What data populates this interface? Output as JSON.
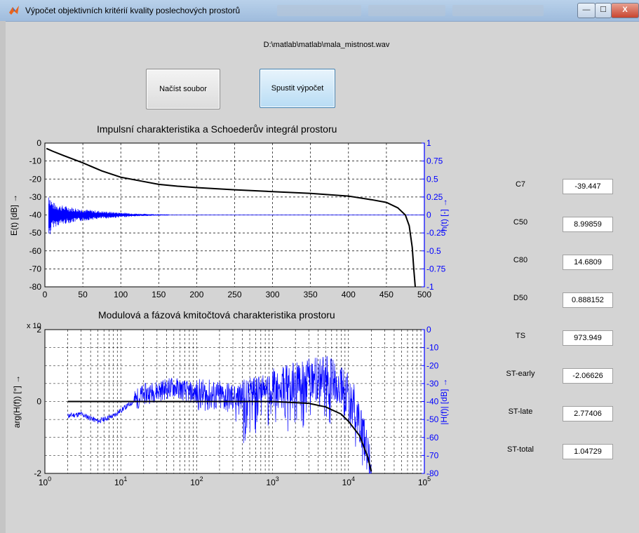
{
  "window": {
    "title": "Výpočet objektivních kritérií kvality poslechových prostorů",
    "minimize": "—",
    "maximize": "☐",
    "close": "X"
  },
  "file_path": "D:\\matlab\\matlab\\mala_mistnost.wav",
  "buttons": {
    "load": "Načíst soubor",
    "run": "Spustit výpočet"
  },
  "chart_data": [
    {
      "type": "line",
      "title": "Impulsní charakteristika a Schoederův integrál prostoru",
      "xlim": [
        0,
        500
      ],
      "x_ticks": [
        "0",
        "50",
        "100",
        "150",
        "200",
        "250",
        "300",
        "350",
        "400",
        "450",
        "500"
      ],
      "ylim_left": [
        -80,
        0
      ],
      "y_ticks_left": [
        "0",
        "-10",
        "-20",
        "-30",
        "-40",
        "-50",
        "-60",
        "-70",
        "-80"
      ],
      "ylabel_left": "E(t) [dB] →",
      "ylim_right": [
        -1,
        1
      ],
      "y_ticks_right": [
        "1",
        "0.75",
        "0.5",
        "0.25",
        "0",
        "-0.25",
        "-0.5",
        "-0.75",
        "-1"
      ],
      "ylabel_right": "h(t) [-] →",
      "grid": true,
      "series": [
        {
          "color": "#000000",
          "x": [
            2,
            10,
            25,
            50,
            75,
            100,
            125,
            150,
            175,
            200,
            250,
            300,
            350,
            400,
            430,
            450,
            465,
            475,
            480,
            484,
            486,
            488
          ],
          "y": [
            -3,
            -4.5,
            -7,
            -11,
            -15.5,
            -19,
            -21,
            -23,
            -24,
            -24.8,
            -26,
            -27,
            -28,
            -29.5,
            -31.5,
            -33,
            -36,
            -40,
            -46,
            -58,
            -70,
            -80
          ]
        },
        {
          "color": "#0000ff",
          "x": [
            5,
            10,
            20,
            40,
            60,
            80,
            100,
            120,
            150,
            175
          ],
          "y": [
            0.35,
            0.18,
            0.14,
            0.1,
            0.07,
            0.05,
            0.035,
            0.02,
            0.01,
            0.005
          ]
        }
      ]
    },
    {
      "type": "line",
      "title": "Modulová a fázová kmitočtová charakteristika prostoru",
      "xscale": "log",
      "xlim": [
        1,
        100000
      ],
      "x_ticks": [
        "10^0",
        "10^1",
        "10^2",
        "10^3",
        "10^4",
        "10^5"
      ],
      "ylim_left": [
        -2,
        2
      ],
      "y_ticks_left": [
        "2",
        "0",
        "-2"
      ],
      "y_scale_note": "x 10",
      "ylabel_left": "arg(H(f)) [°] →",
      "ylim_right": [
        -80,
        0
      ],
      "y_ticks_right": [
        "0",
        "-10",
        "-20",
        "-30",
        "-40",
        "-50",
        "-60",
        "-70",
        "-80"
      ],
      "ylabel_right": "|H(f)| [dB] →",
      "grid": true,
      "series": [
        {
          "color": "#000000",
          "x": [
            2,
            5,
            10,
            100,
            1000,
            3000,
            5000,
            8000,
            10000,
            14000,
            18000,
            20000
          ],
          "y": [
            0,
            0,
            0,
            0,
            0,
            -0.05,
            -0.15,
            -0.35,
            -0.55,
            -0.95,
            -1.55,
            -1.95
          ]
        },
        {
          "color": "#0000ff",
          "x": [
            2,
            3,
            5,
            8,
            10,
            20,
            50,
            100,
            300,
            1000,
            3000,
            5000,
            8000,
            12000,
            16000,
            20000
          ],
          "y": [
            -48,
            -47,
            -51,
            -48,
            -45,
            -36,
            -32,
            -36,
            -38,
            -33,
            -28,
            -26,
            -30,
            -42,
            -60,
            -80
          ]
        }
      ]
    }
  ],
  "params": [
    {
      "label": "C7",
      "value": "-39.447"
    },
    {
      "label": "C50",
      "value": "8.99859"
    },
    {
      "label": "C80",
      "value": "14.6809"
    },
    {
      "label": "D50",
      "value": "0.888152"
    },
    {
      "label": "TS",
      "value": "973.949"
    },
    {
      "label": "ST-early",
      "value": "-2.06626"
    },
    {
      "label": "ST-late",
      "value": "2.77406"
    },
    {
      "label": "ST-total",
      "value": "1.04729"
    }
  ],
  "colors": {
    "grid": "#000000",
    "right_axis": "#0000ff",
    "signal": "#0000ff",
    "curve": "#000000"
  }
}
